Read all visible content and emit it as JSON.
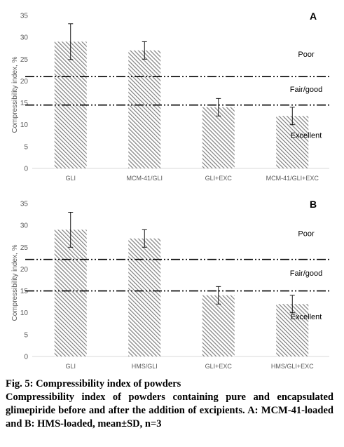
{
  "chart_data": [
    {
      "type": "bar",
      "panel_label": "A",
      "categories": [
        "GLI",
        "MCM-41/GLI",
        "GLI+EXC",
        "MCM-41/GLI+EXC"
      ],
      "values": [
        29,
        27,
        14,
        12
      ],
      "errors": [
        4.1,
        2.0,
        2.0,
        2.0
      ],
      "ylabel": "Compressibility index, %",
      "ylim": [
        0,
        35
      ],
      "yticks": [
        0,
        5,
        10,
        15,
        20,
        25,
        30,
        35
      ],
      "thresholds": [
        21,
        14.5
      ],
      "zone_labels": [
        {
          "text": "Poor",
          "y": 25.5
        },
        {
          "text": "Fair/good",
          "y": 17.5
        },
        {
          "text": "Excellent",
          "y": 7
        }
      ],
      "grid": false,
      "bar_color": "#7f7f7f"
    },
    {
      "type": "bar",
      "panel_label": "B",
      "categories": [
        "GLI",
        "HMS/GLI",
        "GLI+EXC",
        "HMS/GLI+EXC"
      ],
      "values": [
        29,
        27,
        14,
        12
      ],
      "errors": [
        4.0,
        2.0,
        2.0,
        2.0
      ],
      "ylabel": "Compressibility index, %",
      "ylim": [
        0,
        35
      ],
      "yticks": [
        0,
        5,
        10,
        15,
        20,
        25,
        30,
        35
      ],
      "thresholds": [
        22.2,
        15
      ],
      "zone_labels": [
        {
          "text": "Poor",
          "y": 27.5
        },
        {
          "text": "Fair/good",
          "y": 18.5
        },
        {
          "text": "Excellent",
          "y": 8.5
        }
      ],
      "grid": false,
      "bar_color": "#7f7f7f"
    }
  ],
  "caption": {
    "title": "Fig. 5: Compressibility index of powders",
    "text": "Compressibility index of powders containing pure and encapsulated glimepiride before and after the addition of excipients. A: MCM-41-loaded and B: HMS-loaded, mean±SD, n=3"
  }
}
